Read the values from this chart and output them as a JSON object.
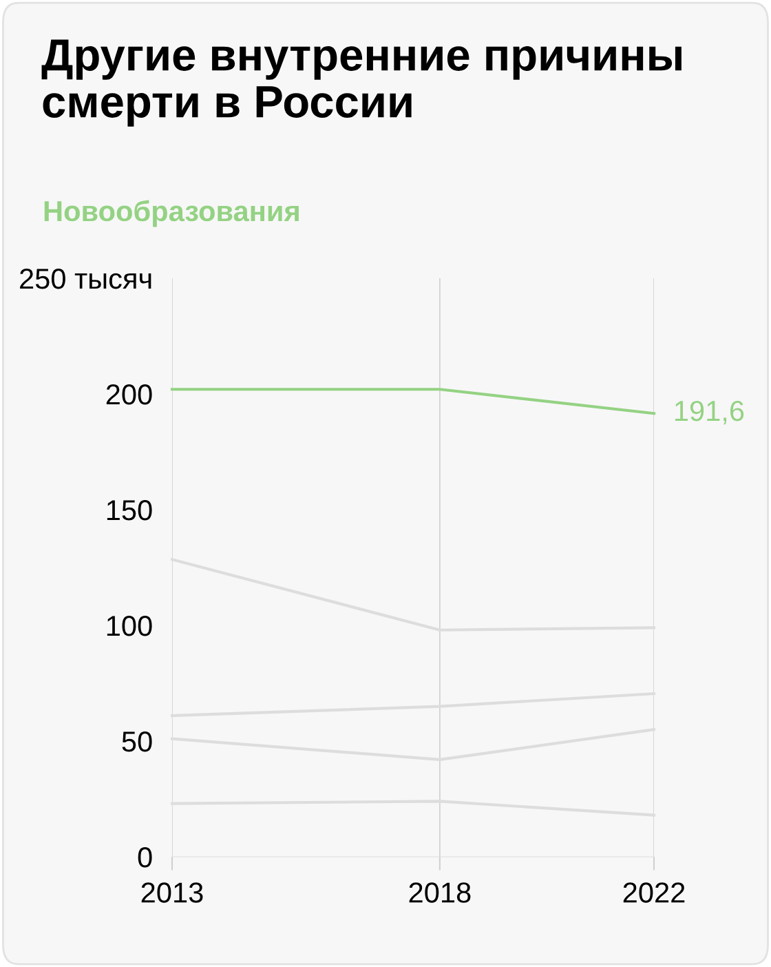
{
  "chart_data": {
    "type": "line",
    "title": "Другие внутренние причины\nсмерти в России",
    "x": [
      2013,
      2018,
      2022
    ],
    "series": [
      {
        "color": "#dddddd",
        "values": [
          128.5,
          98,
          99
        ]
      },
      {
        "color": "#dddddd",
        "values": [
          61,
          65,
          70.5
        ]
      },
      {
        "color": "#dddddd",
        "values": [
          51,
          42,
          55
        ]
      },
      {
        "color": "#dddddd",
        "values": [
          23,
          24,
          18
        ]
      },
      {
        "name": "Новообразования",
        "color": "#94d283",
        "values": [
          202,
          202,
          191.6
        ],
        "value_labels": [
          null,
          null,
          "191,6"
        ]
      }
    ],
    "xlim": [
      2013,
      2022
    ],
    "xticks": [
      2013,
      2018,
      2022
    ],
    "ylim": [
      0,
      250
    ],
    "yticks": [
      0,
      50,
      100,
      150,
      200,
      {
        "value": 250,
        "label": "250 тысяч"
      }
    ],
    "grid": "x",
    "legend": false,
    "marker": "none",
    "line_style": "solid"
  }
}
